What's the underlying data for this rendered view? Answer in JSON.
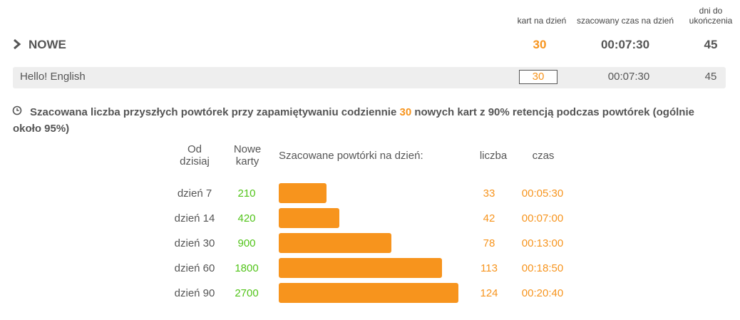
{
  "header": {
    "columns": [
      "kart na dzień",
      "szacowany czas na dzień",
      "dni do ukończenia"
    ]
  },
  "summary": {
    "title": "NOWE",
    "cards_per_day": 30,
    "time_per_day": "00:07:30",
    "days_left": 45
  },
  "deck": {
    "name": "Hello! English",
    "cards_per_day": 30,
    "time_per_day": "00:07:30",
    "days_left": 45
  },
  "forecast": {
    "text_before": "Szacowana liczba przyszłych powtórek przy zapamiętywaniu codziennie",
    "count": 30,
    "text_after": "nowych kart z 90% retencją podczas powtórek (ogólnie około 95%)",
    "columns": [
      "Od dzisiaj",
      "Nowe karty",
      "Szacowane powtórki na dzień:",
      "liczba",
      "czas"
    ],
    "rows": [
      [
        "dzień 7",
        210,
        33,
        "00:05:30"
      ],
      [
        "dzień 14",
        420,
        42,
        "00:07:00"
      ],
      [
        "dzień 30",
        900,
        78,
        "00:13:00"
      ],
      [
        "dzień 60",
        1800,
        113,
        "00:18:50"
      ],
      [
        "dzień 90",
        2700,
        124,
        "00:20:40"
      ]
    ]
  }
}
